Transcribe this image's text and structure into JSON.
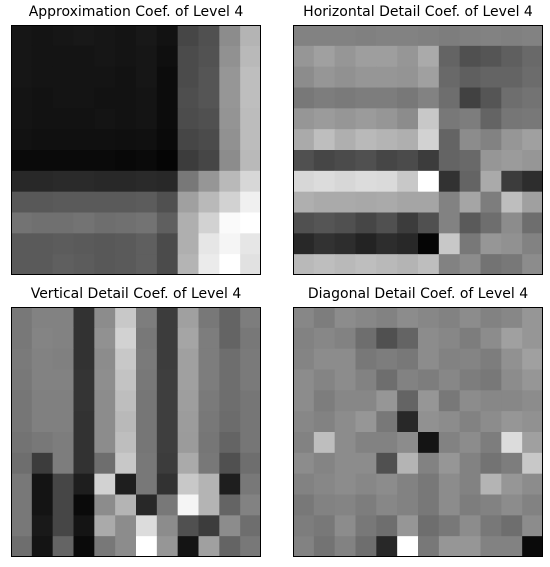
{
  "chart_data": [
    {
      "type": "heatmap",
      "colormap": "gray",
      "axes_visible": false,
      "title": "Approximation Coef. of Level 4",
      "rows": 12,
      "cols": 12,
      "values": [
        [
          22,
          20,
          22,
          24,
          22,
          20,
          24,
          18,
          70,
          80,
          140,
          180
        ],
        [
          22,
          20,
          20,
          20,
          22,
          20,
          22,
          15,
          75,
          82,
          145,
          185
        ],
        [
          22,
          20,
          20,
          20,
          20,
          18,
          22,
          12,
          75,
          85,
          150,
          190
        ],
        [
          20,
          18,
          20,
          20,
          18,
          18,
          20,
          12,
          78,
          85,
          150,
          190
        ],
        [
          20,
          18,
          18,
          18,
          20,
          18,
          20,
          12,
          76,
          80,
          148,
          188
        ],
        [
          18,
          16,
          16,
          16,
          16,
          15,
          16,
          10,
          70,
          75,
          145,
          188
        ],
        [
          10,
          10,
          10,
          10,
          10,
          8,
          10,
          5,
          60,
          70,
          140,
          185
        ],
        [
          40,
          40,
          42,
          42,
          40,
          40,
          42,
          40,
          120,
          150,
          185,
          215
        ],
        [
          88,
          88,
          90,
          90,
          90,
          90,
          92,
          80,
          160,
          185,
          210,
          240
        ],
        [
          115,
          112,
          112,
          115,
          110,
          112,
          115,
          95,
          175,
          210,
          250,
          255
        ],
        [
          90,
          90,
          92,
          90,
          88,
          90,
          95,
          75,
          175,
          230,
          245,
          230
        ],
        [
          90,
          90,
          95,
          92,
          88,
          90,
          95,
          75,
          180,
          235,
          255,
          225
        ]
      ]
    },
    {
      "type": "heatmap",
      "colormap": "gray",
      "axes_visible": false,
      "title": "Horizontal Detail Coef. of Level 4",
      "rows": 12,
      "cols": 12,
      "values": [
        [
          130,
          130,
          130,
          128,
          130,
          130,
          128,
          125,
          128,
          130,
          128,
          130
        ],
        [
          150,
          160,
          150,
          158,
          158,
          150,
          170,
          100,
          80,
          85,
          95,
          105
        ],
        [
          140,
          150,
          145,
          150,
          150,
          148,
          160,
          105,
          95,
          100,
          100,
          108
        ],
        [
          120,
          125,
          122,
          125,
          125,
          120,
          130,
          110,
          65,
          85,
          110,
          115
        ],
        [
          150,
          155,
          150,
          155,
          150,
          140,
          200,
          120,
          125,
          100,
          118,
          120
        ],
        [
          170,
          190,
          175,
          185,
          180,
          175,
          210,
          100,
          140,
          130,
          150,
          160
        ],
        [
          80,
          70,
          75,
          80,
          70,
          75,
          60,
          100,
          105,
          150,
          155,
          150
        ],
        [
          215,
          220,
          215,
          220,
          218,
          200,
          255,
          50,
          100,
          170,
          60,
          45
        ],
        [
          175,
          170,
          170,
          168,
          170,
          165,
          165,
          130,
          165,
          125,
          190,
          160
        ],
        [
          80,
          85,
          80,
          70,
          80,
          60,
          80,
          130,
          90,
          110,
          140,
          110
        ],
        [
          40,
          50,
          45,
          35,
          45,
          40,
          5,
          200,
          120,
          150,
          145,
          130
        ],
        [
          185,
          190,
          185,
          190,
          185,
          180,
          190,
          130,
          140,
          115,
          120,
          140
        ]
      ]
    },
    {
      "type": "heatmap",
      "colormap": "gray",
      "axes_visible": false,
      "title": "Vertical Detail Coef. of Level 4",
      "rows": 12,
      "cols": 12,
      "values": [
        [
          120,
          130,
          130,
          50,
          140,
          200,
          125,
          60,
          160,
          120,
          100,
          125
        ],
        [
          120,
          132,
          130,
          50,
          145,
          210,
          120,
          60,
          165,
          125,
          100,
          120
        ],
        [
          122,
          130,
          128,
          50,
          140,
          200,
          122,
          60,
          160,
          125,
          110,
          122
        ],
        [
          120,
          130,
          130,
          52,
          142,
          195,
          120,
          62,
          160,
          125,
          110,
          122
        ],
        [
          118,
          128,
          128,
          52,
          140,
          190,
          118,
          62,
          158,
          122,
          110,
          118
        ],
        [
          118,
          128,
          128,
          50,
          140,
          185,
          118,
          62,
          156,
          120,
          108,
          118
        ],
        [
          115,
          120,
          125,
          50,
          140,
          190,
          118,
          62,
          155,
          118,
          100,
          118
        ],
        [
          110,
          60,
          125,
          50,
          110,
          200,
          120,
          60,
          170,
          120,
          80,
          110
        ],
        [
          120,
          20,
          70,
          30,
          210,
          30,
          120,
          50,
          200,
          180,
          30,
          120
        ],
        [
          120,
          20,
          70,
          10,
          140,
          180,
          40,
          120,
          245,
          180,
          100,
          130
        ],
        [
          120,
          25,
          70,
          20,
          170,
          140,
          220,
          140,
          80,
          60,
          140,
          110
        ],
        [
          110,
          20,
          100,
          10,
          120,
          140,
          255,
          150,
          20,
          160,
          100,
          120
        ]
      ]
    },
    {
      "type": "heatmap",
      "colormap": "gray",
      "axes_visible": false,
      "title": "Diagonal Detail Coef. of Level 4",
      "rows": 12,
      "cols": 12,
      "values": [
        [
          135,
          125,
          140,
          135,
          130,
          140,
          135,
          130,
          140,
          130,
          135,
          150
        ],
        [
          130,
          135,
          130,
          110,
          80,
          100,
          140,
          135,
          125,
          140,
          160,
          150
        ],
        [
          132,
          140,
          140,
          120,
          125,
          120,
          140,
          130,
          132,
          125,
          145,
          160
        ],
        [
          140,
          132,
          140,
          130,
          110,
          130,
          125,
          135,
          125,
          120,
          140,
          150
        ],
        [
          140,
          125,
          135,
          135,
          150,
          100,
          150,
          120,
          140,
          135,
          135,
          140
        ],
        [
          135,
          130,
          140,
          150,
          120,
          40,
          145,
          140,
          130,
          140,
          150,
          145
        ],
        [
          130,
          190,
          140,
          130,
          130,
          140,
          20,
          130,
          140,
          125,
          220,
          160
        ],
        [
          140,
          132,
          140,
          140,
          80,
          180,
          130,
          150,
          130,
          115,
          125,
          200
        ],
        [
          130,
          135,
          140,
          135,
          140,
          130,
          120,
          140,
          130,
          180,
          150,
          140
        ],
        [
          120,
          130,
          132,
          125,
          135,
          130,
          120,
          140,
          125,
          130,
          140,
          130
        ],
        [
          125,
          120,
          140,
          120,
          110,
          150,
          110,
          120,
          140,
          120,
          110,
          140
        ],
        [
          130,
          115,
          130,
          110,
          40,
          255,
          120,
          150,
          150,
          130,
          130,
          10
        ]
      ]
    }
  ]
}
